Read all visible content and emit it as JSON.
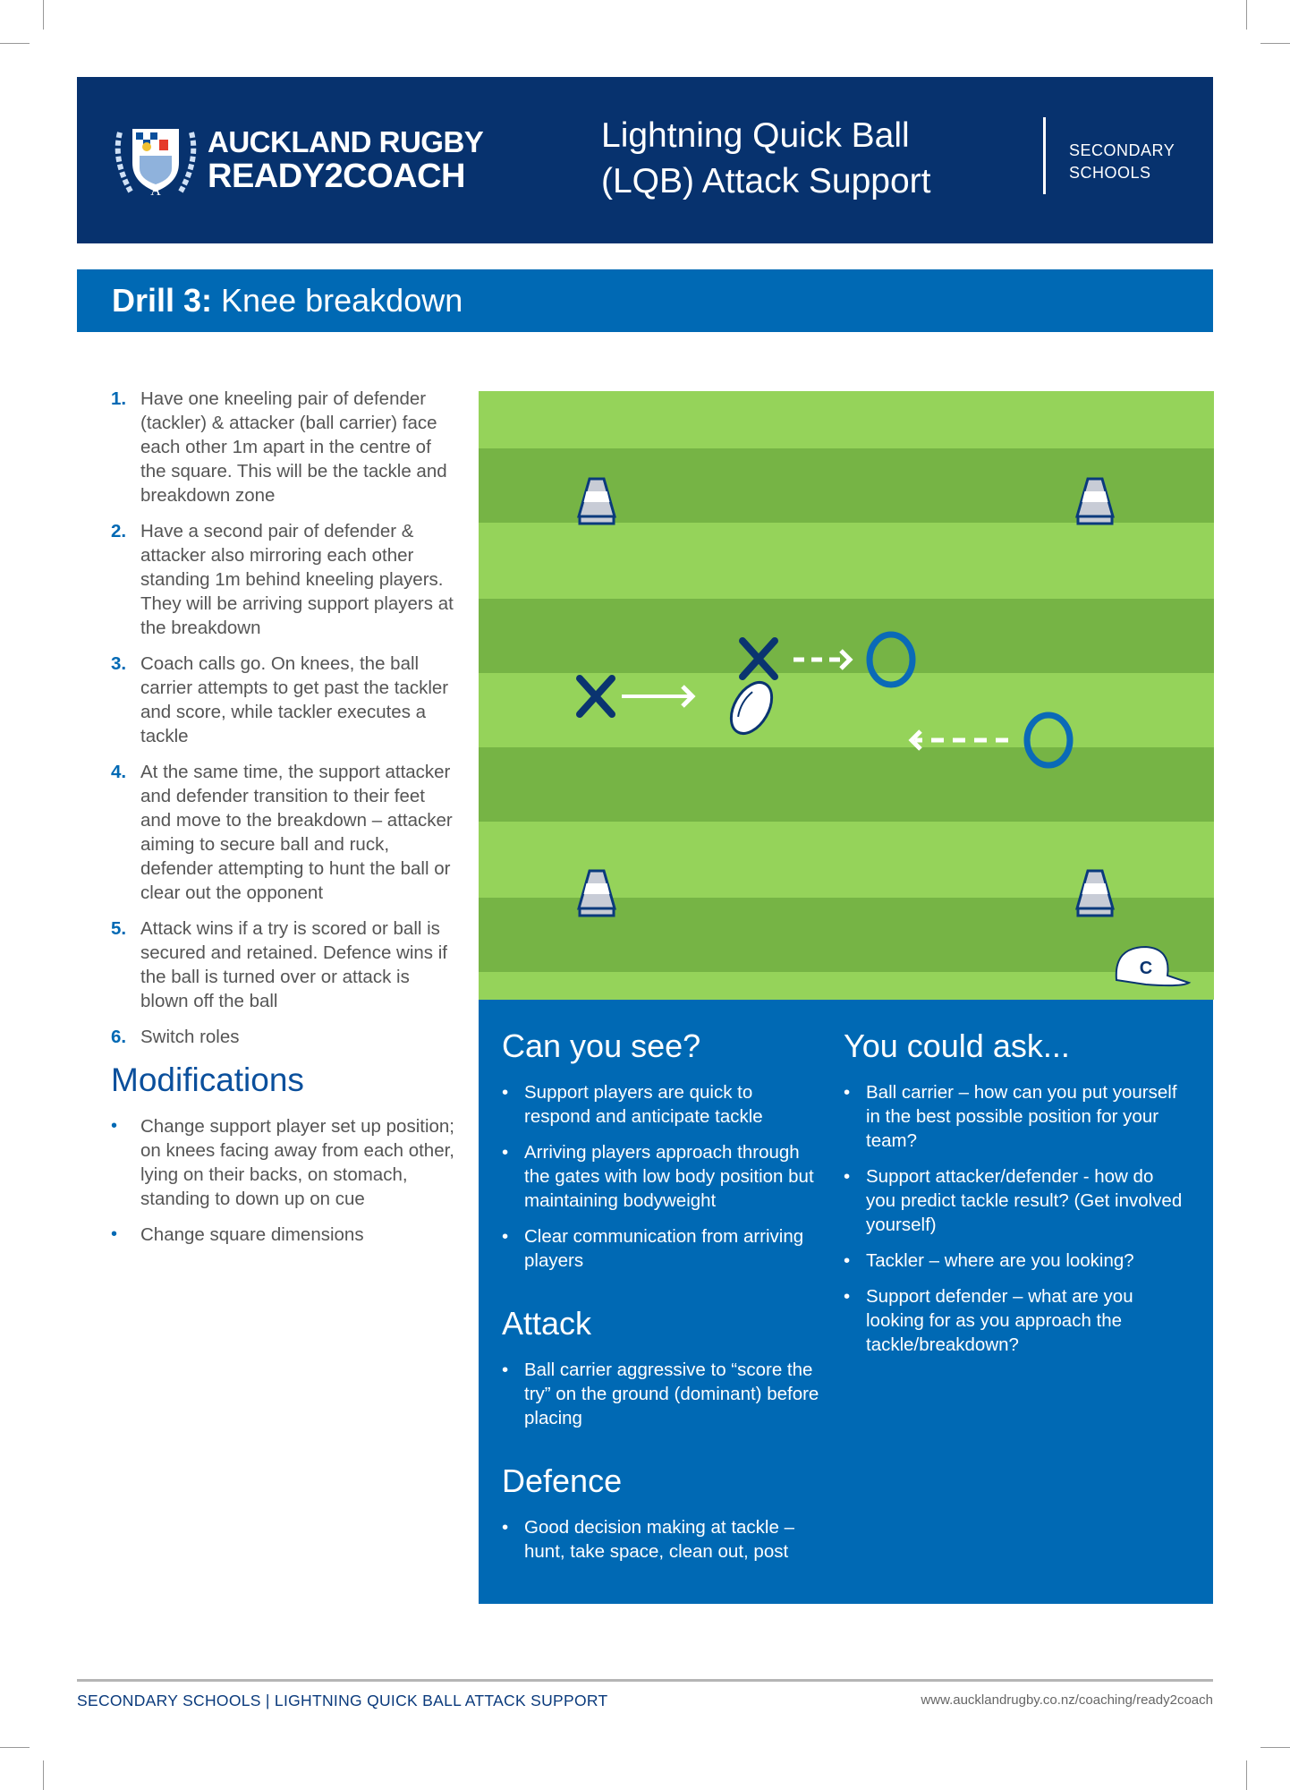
{
  "header": {
    "logo_line1": "AUCKLAND RUGBY",
    "logo_line2": "READY2COACH",
    "title_line1": "Lightning Quick Ball",
    "title_line2": "(LQB) Attack Support",
    "audience_line1": "SECONDARY",
    "audience_line2": "SCHOOLS",
    "bg_color": "#07326e"
  },
  "drill": {
    "prefix": "Drill 3:",
    "name": "Knee breakdown",
    "bg_color": "#0069b4"
  },
  "steps": [
    {
      "num": "1.",
      "text": "Have one kneeling pair of defender (tackler) & attacker (ball carrier) face each other 1m apart in the centre of the square. This will be the tackle and breakdown zone"
    },
    {
      "num": "2.",
      "text": "Have a second pair of defender & attacker also mirroring each other standing 1m behind kneeling players. They will be arriving support players at the breakdown"
    },
    {
      "num": "3.",
      "text": "Coach calls go. On knees, the ball carrier attempts to get past the tackler and score, while tackler executes a tackle"
    },
    {
      "num": "4.",
      "text": "At the same time, the support attacker and defender transition to their feet and move to the breakdown – attacker aiming to secure ball and ruck, defender attempting to hunt the ball or clear out the opponent"
    },
    {
      "num": "5.",
      "text": "Attack wins if a try is scored or ball is secured and retained. Defence wins if the ball is turned over or attack is blown off the ball"
    },
    {
      "num": "6.",
      "text": "Switch roles"
    }
  ],
  "modifications": {
    "heading": "Modifications",
    "items": [
      "Change support player set up position; on knees facing away from each other, lying on their backs, on stomach, standing to down up on cue",
      "Change square dimensions"
    ]
  },
  "diagram": {
    "field_colors": {
      "light": "#95d35a",
      "dark": "#76b445"
    },
    "icons": [
      "cone-icon",
      "attacker-x-icon",
      "defender-circle-icon",
      "rugby-ball-icon",
      "coach-cap-icon",
      "arrow-icon"
    ],
    "coach_cap_letter": "C"
  },
  "can_you_see": {
    "heading": "Can you see?",
    "items": [
      "Support players are quick to respond and anticipate tackle",
      "Arriving players approach through the gates with low body position but maintaining bodyweight",
      "Clear communication from arriving players"
    ]
  },
  "attack": {
    "heading": "Attack",
    "items": [
      "Ball carrier aggressive to “score the try” on the ground (dominant) before placing"
    ]
  },
  "defence": {
    "heading": "Defence",
    "items": [
      "Good decision making at tackle – hunt, take space, clean out, post"
    ]
  },
  "you_could_ask": {
    "heading": "You could ask...",
    "items": [
      "Ball carrier – how can you put yourself in the best possible position for your team?",
      "Support attacker/defender - how do you predict tackle result? (Get involved yourself)",
      "Tackler – where are you looking?",
      "Support defender – what are you looking for as you approach the tackle/breakdown?"
    ]
  },
  "footer": {
    "left": "SECONDARY SCHOOLS | LIGHTNING QUICK BALL ATTACK SUPPORT",
    "right": "www.aucklandrugby.co.nz/coaching/ready2coach"
  }
}
